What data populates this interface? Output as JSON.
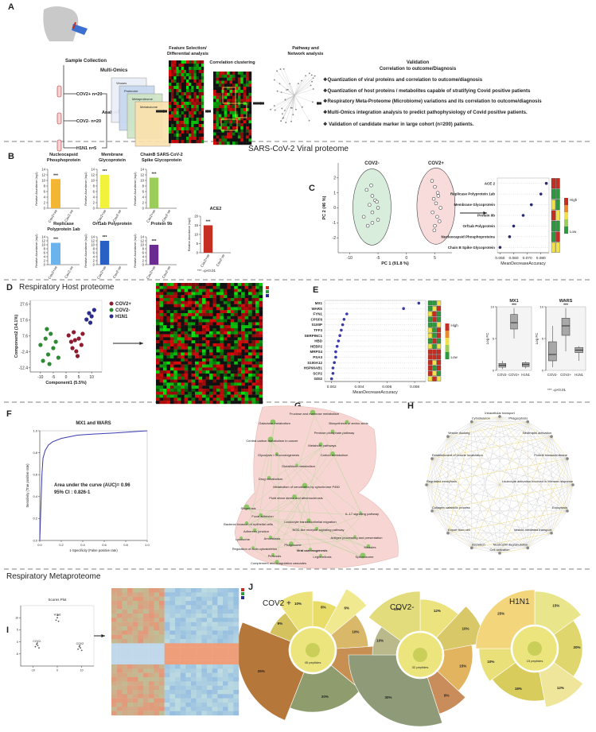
{
  "panel_letters": [
    "A",
    "B",
    "C",
    "D",
    "E",
    "F",
    "G",
    "H",
    "I",
    "J"
  ],
  "section_titles": [
    "SARS-CoV-2 Viral proteome",
    "Respiratory Host proteome",
    "Respiratory Metaproteome"
  ],
  "significance_note": "*** =p<0.01",
  "panel_a": {
    "sample_collection": "Sample Collection",
    "groups": [
      "COV2+ n=20",
      "COV2- n=20",
      "H1N1 n=5"
    ],
    "analysis": "Analysis",
    "multi_omics": "Multi-Omics",
    "omics_layers": [
      "Viruses",
      "Proteome",
      "Metaproteome",
      "Metabolome"
    ],
    "steps": [
      [
        "Feature Selection/",
        "Differential analysis"
      ],
      [
        "Correlation clustering"
      ],
      [
        "Pathway and",
        "Network analysis"
      ]
    ],
    "validation": "Validation",
    "validation_sub": "Correlation to outcome/Diagnosis",
    "bullets": [
      "❖Quantization of viral proteins and correlation to outcome/diagnosis",
      "❖Quantization of host proteins / metabolites capable of  stratifying Covid positive patients",
      "❖Respiratory Meta-Proteome (Microbiome) variations and its correlation to outcome/diagnosis",
      "❖Multi-Omics integration analysis to predict pathophysiology of Covid positive patients.",
      "❖ Validation of candidate marker in large cohort (n=200) patients."
    ]
  },
  "chart_data": [
    {
      "type": "bar",
      "title": [
        "Nucleocapsid",
        "Phosphoprotein"
      ],
      "categories": [
        "Cov2+ve",
        "Cov2-ve"
      ],
      "values": [
        10.5,
        0
      ],
      "color": "#f2b632",
      "ylim": [
        0,
        14
      ],
      "yticks": [
        0,
        2,
        4,
        6,
        8,
        10,
        12,
        14
      ],
      "ylabel": "Relative Abundance (log2)",
      "significance": "***"
    },
    {
      "type": "bar",
      "title": [
        "Membrane",
        "Glycoprotein"
      ],
      "categories": [
        "Cov2+ve",
        "Cov2-ve"
      ],
      "values": [
        12,
        0
      ],
      "color": "#f2f23c",
      "ylim": [
        0,
        14
      ],
      "yticks": [
        0,
        2,
        4,
        6,
        8,
        10,
        12,
        14
      ],
      "ylabel": "Relative Abundance (log2)",
      "significance": "***"
    },
    {
      "type": "bar",
      "title": [
        "ChainB SARS-CoV-2",
        "Spike Glycoprotein"
      ],
      "categories": [
        "Cov2+ve",
        "Cov2-ve"
      ],
      "values": [
        11,
        0
      ],
      "color": "#9ccc5a",
      "ylim": [
        0,
        14
      ],
      "yticks": [
        0,
        2,
        4,
        6,
        8,
        10,
        12,
        14
      ],
      "ylabel": "Relative Abundance (log2)",
      "significance": "***"
    },
    {
      "type": "bar",
      "title": [
        "ACE2"
      ],
      "categories": [
        "Cov2+ve",
        "Cov2-ve"
      ],
      "values": [
        15,
        0
      ],
      "color": "#c62e22",
      "ylim": [
        0,
        20
      ],
      "yticks": [
        0,
        5,
        10,
        15,
        20
      ],
      "ylabel": "Relative Abundance (log2)",
      "significance": "***"
    },
    {
      "type": "bar",
      "title": [
        "Replicase",
        "Polyprotein 1ab"
      ],
      "categories": [
        "Cov2+ve",
        "Cov2-ve"
      ],
      "values": [
        11,
        0
      ],
      "color": "#6bb3ec",
      "ylim": [
        0,
        14
      ],
      "yticks": [
        0,
        2,
        4,
        6,
        8,
        10,
        12,
        14
      ],
      "ylabel": "Relative Abundance (log2)",
      "significance": "***"
    },
    {
      "type": "bar",
      "title": [
        "Orf1ab Polyprotein"
      ],
      "categories": [
        "Cov2+ve",
        "Cov2-ve"
      ],
      "values": [
        12,
        0
      ],
      "color": "#2a5fc4",
      "ylim": [
        0,
        14
      ],
      "yticks": [
        0,
        2,
        4,
        6,
        8,
        10,
        12,
        14
      ],
      "ylabel": "Relative Abundance (log2)",
      "significance": "***"
    },
    {
      "type": "bar",
      "title": [
        "Protein 9b"
      ],
      "categories": [
        "Cov2+ve",
        "Cov2-ve"
      ],
      "values": [
        10,
        0
      ],
      "color": "#6a2c91",
      "ylim": [
        0,
        14
      ],
      "yticks": [
        0,
        2,
        4,
        6,
        8,
        10,
        12,
        14
      ],
      "ylabel": "Relative Abundance (log2)",
      "significance": "***"
    },
    {
      "type": "scatter",
      "marker": "open",
      "xlabel": "PC 1 (91.8 %)",
      "ylabel": "PC 2 (46 %)",
      "xlim": [
        -12,
        8
      ],
      "ylim": [
        -3,
        3
      ],
      "xticks": [
        -10,
        -5,
        0,
        5
      ],
      "yticks": [
        -2,
        -1,
        0,
        1,
        2
      ],
      "series": [
        {
          "name": "COV2-",
          "color": "#2e9a3e",
          "x": [
            -7,
            -6,
            -5.5,
            -6.5,
            -5,
            -6,
            -7.5,
            -5,
            -6,
            -6.8,
            -5.2,
            -6.2
          ],
          "y": [
            1.2,
            0.8,
            0.5,
            0.2,
            0,
            -0.3,
            -0.6,
            -0.8,
            -1,
            -1.2,
            0.4,
            1.5
          ]
        },
        {
          "name": "COV2+",
          "color": "#d63a3a",
          "x": [
            4.5,
            5,
            5.5,
            4.8,
            5.2,
            6,
            4.6,
            5.4,
            5.8,
            5,
            4.9,
            5.6
          ],
          "y": [
            1.8,
            1.4,
            1,
            0.6,
            0.3,
            0,
            -0.3,
            -0.6,
            -0.9,
            -1.2,
            -1.5,
            0.8
          ]
        }
      ]
    },
    {
      "type": "dot",
      "categories": [
        "ACE 2",
        "Replicase Polyprotein 1ab",
        "Membrane Glycoprotein",
        "Protein 9b",
        "Orf1ab Polyprotein",
        "Nucleocapsid Phosphoproteins",
        "Chain B Spike Glycoprotein"
      ],
      "values": [
        0.084,
        0.08,
        0.073,
        0.067,
        0.06,
        0.057,
        0.05
      ],
      "color": "#2a2a6a",
      "xlim": [
        0.048,
        0.086
      ],
      "xticks": [
        {
          "value": 0.05,
          "label": "0.050"
        },
        {
          "value": 0.06,
          "label": "0.060"
        },
        {
          "value": 0.07,
          "label": "0.070"
        },
        {
          "value": 0.08,
          "label": "0.080"
        }
      ],
      "xlabel": "MeanDecreaseAccuracy",
      "color_scale": [
        "High",
        "Low"
      ]
    },
    {
      "type": "scatter",
      "marker": "filled",
      "legend": "right",
      "xlabel": "Component1 (5.5%)",
      "ylabel": "Component2 (14.1%)",
      "xlim": [
        -14,
        14
      ],
      "ylim": [
        -15,
        30
      ],
      "xticks": [
        -10,
        -5,
        0,
        5,
        10
      ],
      "yticks": [
        -12.4,
        -2.4,
        7.6,
        17.6,
        27.6
      ],
      "series": [
        {
          "name": "COV2+",
          "color": "#8e1b2e",
          "x": [
            1,
            2,
            3,
            4,
            5,
            6,
            2.5,
            4.5,
            6.5,
            3.5
          ],
          "y": [
            8,
            4,
            10,
            -2,
            6,
            2,
            0,
            -5,
            9,
            5
          ]
        },
        {
          "name": "COV2-",
          "color": "#2f8a34",
          "x": [
            -10,
            -8,
            -7,
            -6,
            -5,
            -9,
            -4,
            -7.5,
            -6.5,
            -3
          ],
          "y": [
            2,
            6,
            -4,
            9,
            0,
            -8,
            4,
            12,
            -10,
            -6
          ]
        },
        {
          "name": "H1N1",
          "color": "#2c2c8c",
          "x": [
            8,
            9,
            10,
            11,
            9.5
          ],
          "y": [
            18,
            22,
            20,
            24,
            16
          ]
        }
      ]
    },
    {
      "type": "dot",
      "categories": [
        "MX1",
        "WARS",
        "FYN1",
        "CPSF6",
        "S100P",
        "TFF3",
        "SERPINC1",
        "HBD",
        "HEBP2",
        "MRPS4",
        "PSA3",
        "S100A12",
        "HSP90AB1",
        "SCP2",
        "GDI2"
      ],
      "values": [
        0.0083,
        0.0072,
        0.0031,
        0.0029,
        0.0028,
        0.0027,
        0.0026,
        0.0025,
        0.0024,
        0.0023,
        0.0023,
        0.0022,
        0.0021,
        0.0021,
        0.002
      ],
      "color": "#3a3aa8",
      "xlim": [
        0.0015,
        0.0088
      ],
      "xticks": [
        0.002,
        0.004,
        0.006,
        0.008
      ],
      "xlabel": "MeanDecreaseAccuracy",
      "color_scale": [
        "High",
        "Low"
      ]
    },
    {
      "type": "box",
      "title": "MX1",
      "categories": [
        "COV2-",
        "COV2+",
        "H1N1"
      ],
      "min": [
        0.2,
        5,
        0.3
      ],
      "q1": [
        0.5,
        6.5,
        0.6
      ],
      "median": [
        0.8,
        7.5,
        0.9
      ],
      "q3": [
        1.1,
        8.8,
        1.2
      ],
      "max": [
        1.5,
        9.8,
        1.4
      ],
      "color": "#a8a8a8",
      "ylim": [
        0,
        10
      ],
      "yticks": [
        0,
        5,
        10
      ],
      "ylabel": "Log FC",
      "significance": "***"
    },
    {
      "type": "box",
      "title": "WARS",
      "categories": [
        "COV2-",
        "COV2+",
        "H1N1"
      ],
      "min": [
        0.5,
        3,
        1.5
      ],
      "q1": [
        1.5,
        5.5,
        2.8
      ],
      "median": [
        2.5,
        7,
        3.2
      ],
      "q3": [
        4.5,
        8.2,
        3.6
      ],
      "max": [
        7,
        9.8,
        3.8
      ],
      "color": "#a8a8a8",
      "ylim": [
        0,
        10
      ],
      "yticks": [
        0,
        5,
        10
      ],
      "ylabel": "Log FC",
      "significance": "***"
    },
    {
      "type": "line",
      "title": "MX1 and WARS",
      "x": [
        0,
        0.01,
        0.02,
        0.03,
        0.05,
        0.08,
        0.12,
        0.2,
        0.35,
        0.5,
        0.7,
        0.85,
        1
      ],
      "values": [
        0,
        0.3,
        0.6,
        0.75,
        0.82,
        0.87,
        0.9,
        0.93,
        0.96,
        0.97,
        0.98,
        0.99,
        1
      ],
      "color": "#3b3bb3",
      "xlim": [
        0,
        1
      ],
      "ylim": [
        0,
        1
      ],
      "xticks": [
        {
          "value": 0,
          "label": "0.0"
        },
        0.2,
        0.4,
        0.6,
        0.8,
        {
          "value": 1,
          "label": "1.0"
        }
      ],
      "yticks": [
        {
          "value": 0,
          "label": "0.0"
        },
        0.2,
        0.4,
        0.6,
        0.8,
        {
          "value": 1,
          "label": "1.0"
        }
      ],
      "xlabel": "1-Specificity (False positive rate)",
      "ylabel": "Sensitivity (True positive rate)",
      "annotations": [
        "Area under the curve (AUC)= 0.96",
        "95% CI : 0.826-1"
      ]
    },
    {
      "type": "scatter",
      "marker": "small",
      "title": "Scores Plot",
      "xlim": [
        -15,
        15
      ],
      "ylim": [
        -10,
        15
      ],
      "xticks": [
        -10,
        0,
        10
      ],
      "yticks": [
        -5,
        0,
        5,
        10
      ],
      "series": [
        {
          "name": "COV2-",
          "color": "#555555",
          "x": [
            -9,
            -8.5,
            -8,
            -7.5,
            -8.2
          ],
          "y": [
            -2,
            -1,
            -1.5,
            -2.5,
            -0.5
          ]
        },
        {
          "name": "H1N1",
          "color": "#555555",
          "x": [
            -0.5,
            0,
            0.5,
            0.2
          ],
          "y": [
            9,
            10,
            8.5,
            11
          ]
        },
        {
          "name": "COV2",
          "color": "#555555",
          "x": [
            8.5,
            9,
            9.5,
            10,
            9.2
          ],
          "y": [
            -3,
            -2,
            -2.5,
            -3.5,
            -1.5
          ]
        }
      ]
    },
    {
      "type": "sunburst",
      "title": "COV2 +",
      "center_label": "45 peptides",
      "values": [
        8,
        6,
        10,
        12,
        20,
        25,
        9,
        10
      ],
      "value_labels": [
        "8%",
        "6%",
        "10%",
        "12%",
        "20%",
        "25%",
        "9%",
        "10%"
      ],
      "colors": [
        "#e9dd6a",
        "#f1e98f",
        "#d9b86a",
        "#c78f52",
        "#8f9c6d",
        "#b5773a",
        "#d4c25e",
        "#ece27a"
      ]
    },
    {
      "type": "sunburst",
      "title": "COV2-",
      "center_label": "32 peptides",
      "values": [
        12,
        10,
        15,
        8,
        30,
        10,
        15
      ],
      "value_labels": [
        "12%",
        "10%",
        "15%",
        "8%",
        "30%",
        "10%",
        "15%"
      ],
      "colors": [
        "#ece37e",
        "#d8c868",
        "#e3b45f",
        "#c98d5b",
        "#8e9a78",
        "#b9b98b",
        "#e2dc7c"
      ]
    },
    {
      "type": "sunburst",
      "title": "H1N1",
      "center_label": "15 peptides",
      "values": [
        15,
        20,
        12,
        18,
        10,
        25
      ],
      "value_labels": [
        "15%",
        "20%",
        "12%",
        "18%",
        "10%",
        "25%"
      ],
      "colors": [
        "#e8e58a",
        "#dfd66d",
        "#efe69c",
        "#d8cc5c",
        "#eae07a",
        "#f3d57c"
      ]
    }
  ],
  "panel_g": {
    "nodes": [
      "Fructose and mannose metabolism",
      "Galactose metabolism",
      "Biosynthesis of amino acids",
      "Pentose phosphate pathway",
      "Central carbon metabolism in cancer",
      "Metabolic pathways",
      "Glycolysis / Gluconeogenesis",
      "Carbon metabolism",
      "Glutathione metabolism",
      "Drug metabolism",
      "Metabolism of xenobiotics by cytochrome P450",
      "Fluid shear stress and atherosclerosis",
      "Shigellosis",
      "Focal adhesion",
      "IL-17 signaling pathway",
      "Bacterial invasion of epithelial cells",
      "Leukocyte transendothelial migration",
      "Adherens junction",
      "NOD-like receptor signaling pathway",
      "Lysosome",
      "Amoebiasis",
      "Phagosome",
      "Antigen processing and presentation",
      "Regulation of actin cytoskeleton",
      "Viral carcinogenesis",
      "Measles",
      "Pertussis",
      "Legionellosis",
      "Spliceosome",
      "Complement and coagulation cascades"
    ]
  },
  "panel_h": {
    "nodes": [
      "Intracellular transport",
      "Phagocytosis",
      "Neutrophil activation",
      "Protein transmembrane",
      "Leukocyte activation involved in immune response",
      "Exocytosis",
      "Vesicle-mediated transport",
      "Neutrophil degranulation",
      "Cell activation",
      "Secretion",
      "Export from cell",
      "Collagen catabolic process",
      "Regulated exocytosis",
      "Establishment of vesicle localization",
      "Vesicle docking",
      "Cytoskeleton"
    ]
  }
}
